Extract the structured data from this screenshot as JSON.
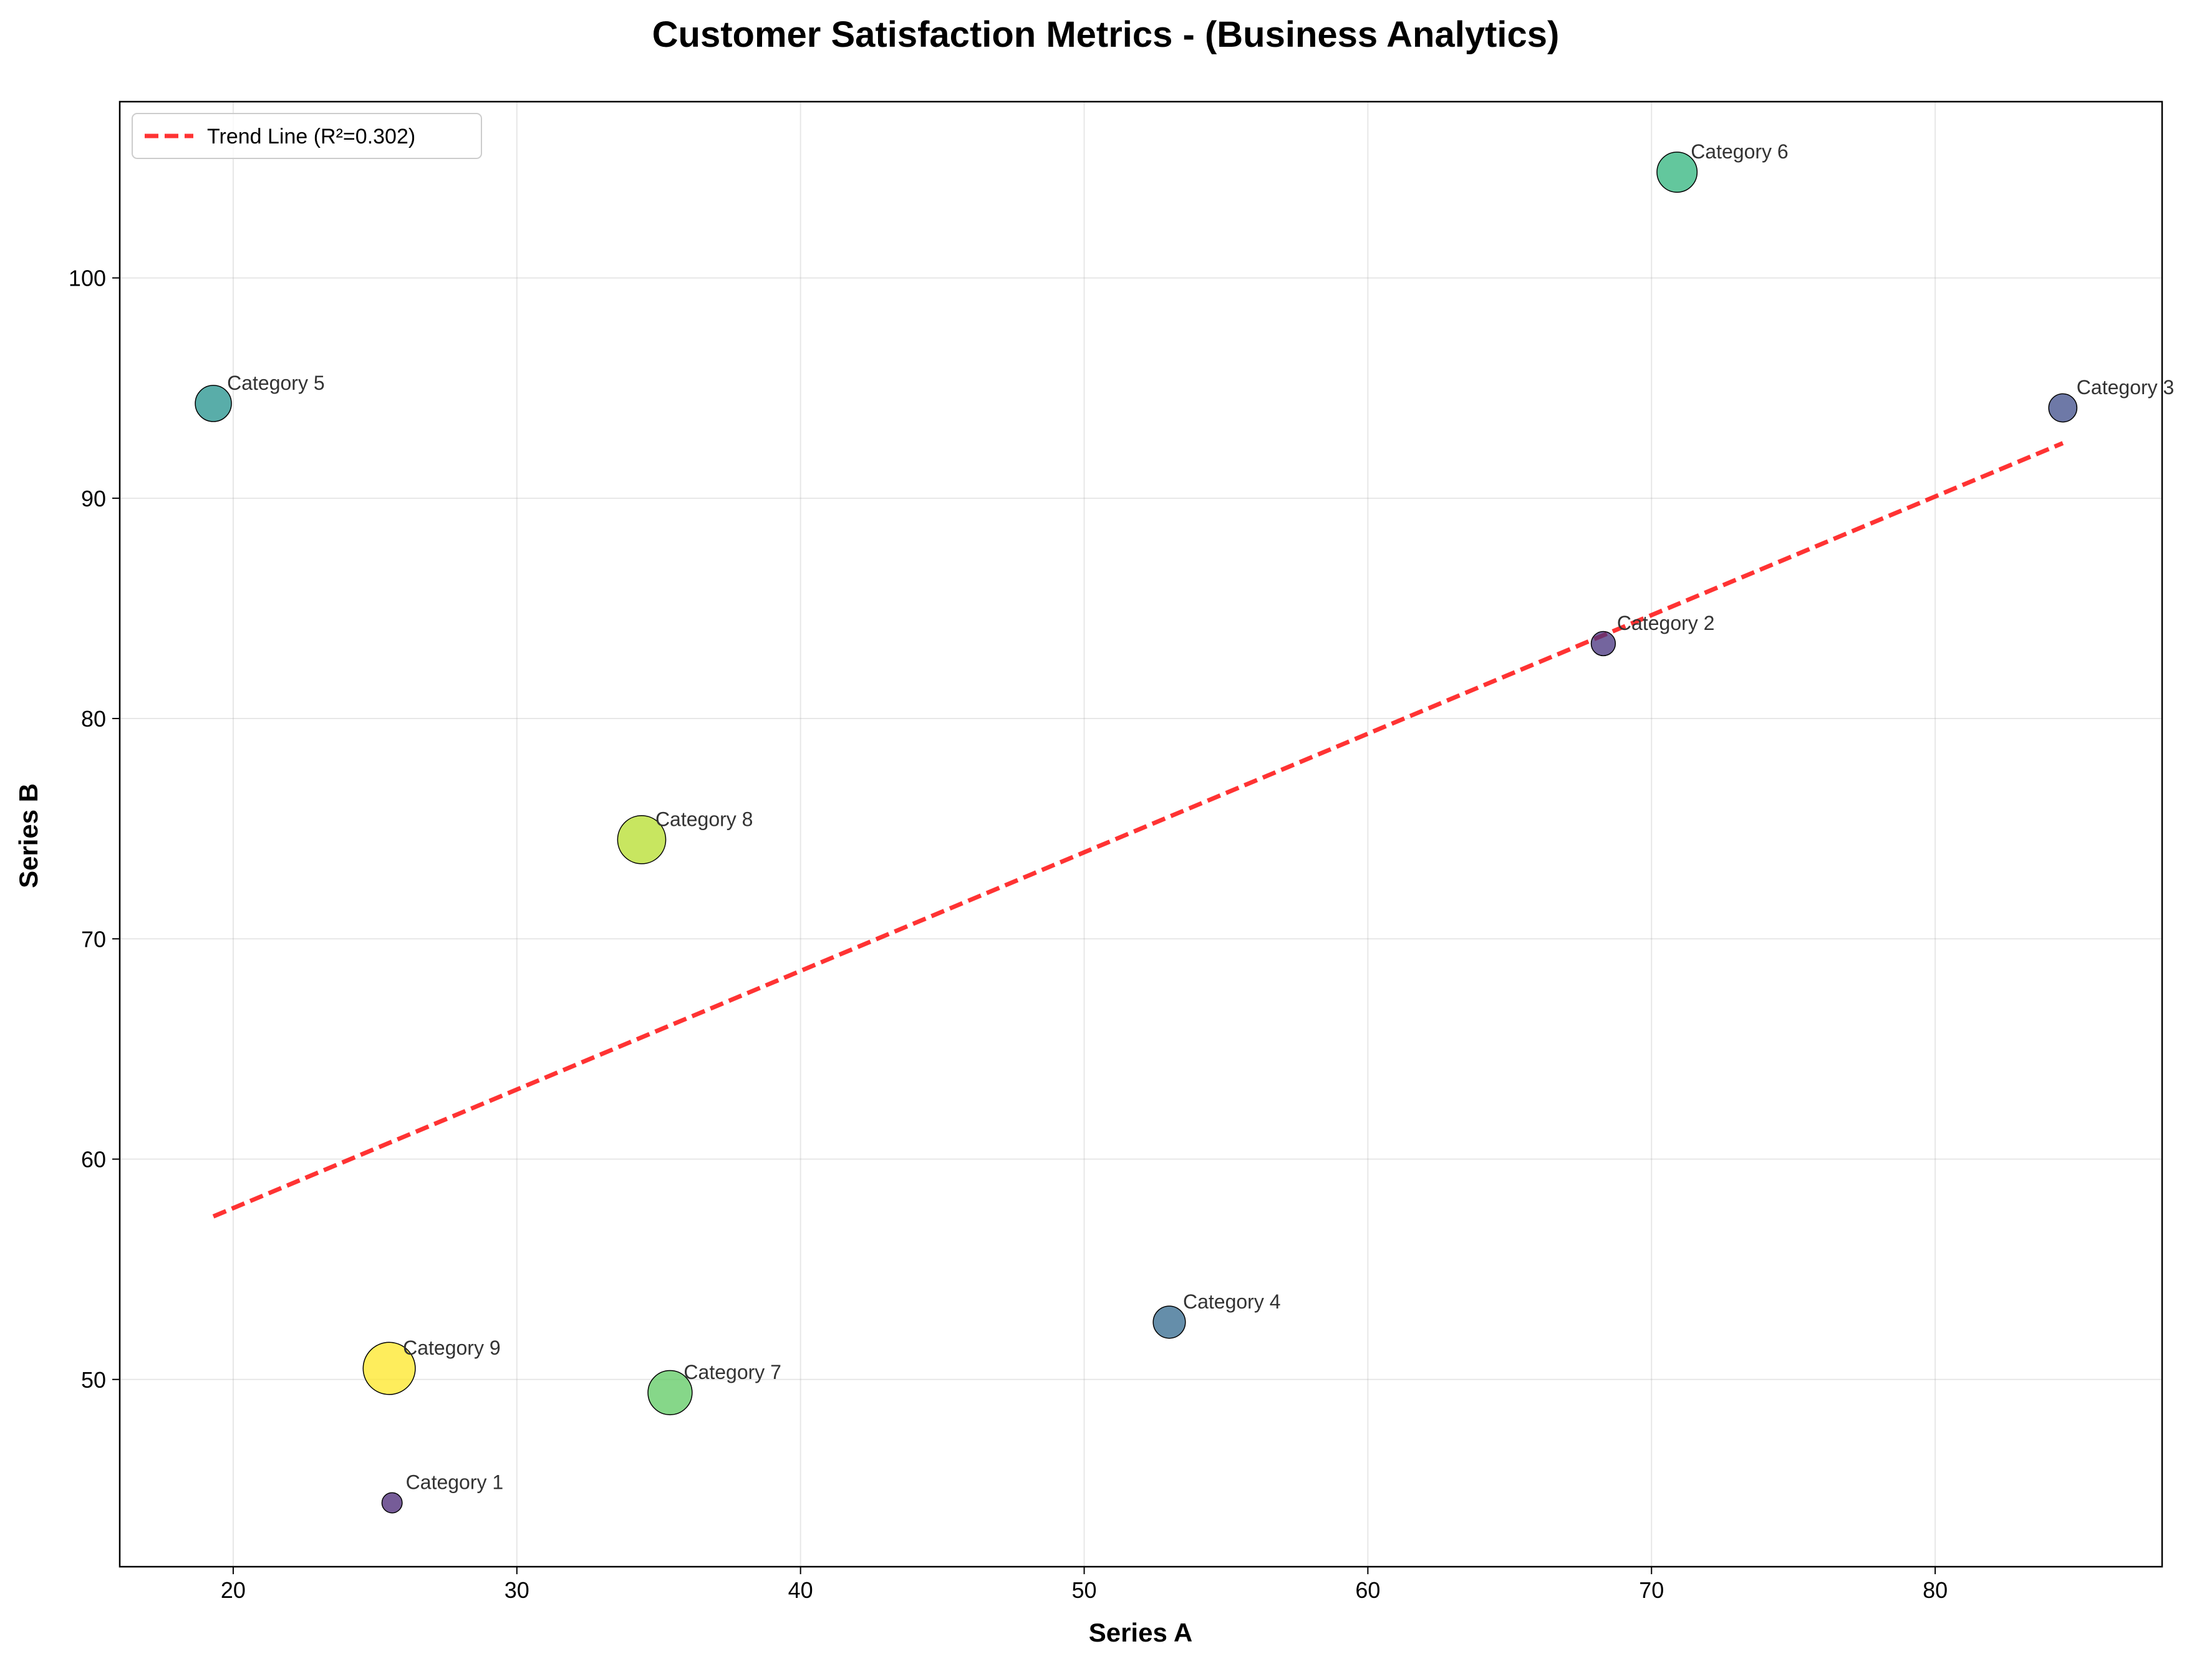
{
  "chart_data": {
    "type": "scatter",
    "title": "Customer Satisfaction Metrics - (Business Analytics)",
    "xlabel": "Series A",
    "ylabel": "Series B",
    "xlim": [
      16,
      88
    ],
    "ylim": [
      41.5,
      108
    ],
    "x_ticks": [
      20,
      30,
      40,
      50,
      60,
      70,
      80
    ],
    "y_ticks": [
      50,
      60,
      70,
      80,
      90,
      100
    ],
    "grid": true,
    "legend_position": "top-left",
    "points": [
      {
        "label": "Category 1",
        "x": 25.6,
        "y": 44.4,
        "size": 1,
        "color": "#482576"
      },
      {
        "label": "Category 2",
        "x": 68.3,
        "y": 83.4,
        "size": 2,
        "color": "#46327e"
      },
      {
        "label": "Category 3",
        "x": 84.5,
        "y": 94.1,
        "size": 3,
        "color": "#3e4c8a"
      },
      {
        "label": "Category 4",
        "x": 53.0,
        "y": 52.6,
        "size": 4,
        "color": "#31688e"
      },
      {
        "label": "Category 5",
        "x": 19.3,
        "y": 94.3,
        "size": 5,
        "color": "#21918c"
      },
      {
        "label": "Category 6",
        "x": 70.9,
        "y": 104.8,
        "size": 6,
        "color": "#2fb47c"
      },
      {
        "label": "Category 7",
        "x": 35.4,
        "y": 49.4,
        "size": 7,
        "color": "#5ec962"
      },
      {
        "label": "Category 8",
        "x": 34.4,
        "y": 74.5,
        "size": 8,
        "color": "#b5de2b"
      },
      {
        "label": "Category 9",
        "x": 25.5,
        "y": 50.5,
        "size": 9,
        "color": "#fde725"
      }
    ],
    "trend_line": {
      "label": "Trend Line (R²=0.302)",
      "x_start": 19.3,
      "y_start": 57.4,
      "x_end": 84.5,
      "y_end": 92.5,
      "color": "#ff0000"
    }
  }
}
